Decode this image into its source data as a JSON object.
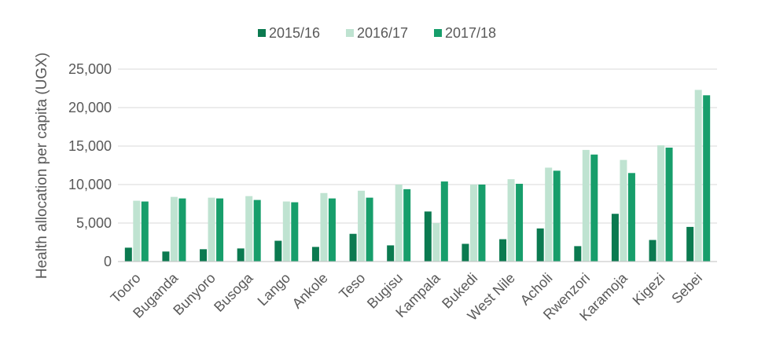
{
  "chart_data": {
    "type": "bar",
    "title": "",
    "xlabel": "",
    "ylabel": "Health allocation per capita (UGX)",
    "ylim": [
      0,
      25000
    ],
    "yticks": [
      0,
      5000,
      10000,
      15000,
      20000,
      25000
    ],
    "ytick_labels": [
      "0",
      "5,000",
      "10,000",
      "15,000",
      "20,000",
      "25,000"
    ],
    "grid": "horizontal",
    "legend_position": "top",
    "categories": [
      "Tooro",
      "Buganda",
      "Bunyoro",
      "Busoga",
      "Lango",
      "Ankole",
      "Teso",
      "Bugisu",
      "Kampala",
      "Bukedi",
      "West Nile",
      "Acholi",
      "Rwenzori",
      "Karamoja",
      "Kigezi",
      "Sebei"
    ],
    "series": [
      {
        "name": "2015/16",
        "color": "#0b7a50",
        "values": [
          1800,
          1300,
          1600,
          1700,
          2700,
          1900,
          3600,
          2100,
          6500,
          2300,
          2900,
          4300,
          2000,
          6200,
          2800,
          4500
        ]
      },
      {
        "name": "2016/17",
        "color": "#bfe3d1",
        "values": [
          7900,
          8400,
          8300,
          8500,
          7800,
          8900,
          9200,
          10000,
          5000,
          10000,
          10700,
          12200,
          14500,
          13200,
          15100,
          22300
        ]
      },
      {
        "name": "2017/18",
        "color": "#179e6b",
        "values": [
          7800,
          8200,
          8200,
          8000,
          7700,
          8200,
          8300,
          9400,
          10400,
          10000,
          10100,
          11800,
          13900,
          11500,
          14800,
          21600
        ]
      }
    ]
  }
}
